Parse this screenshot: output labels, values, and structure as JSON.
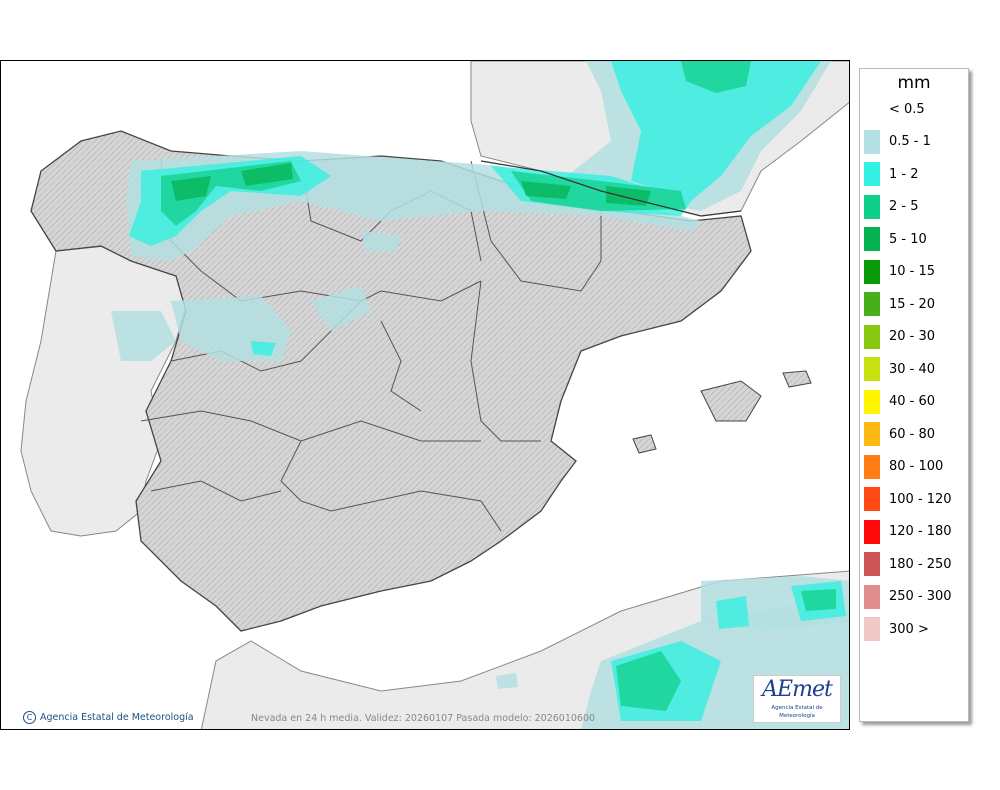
{
  "map": {
    "footer": "Nevada en 24 h media. Validez: 20260107 Pasada modelo: 2026010600",
    "credit": "Agencia Estatal de Meteorología",
    "logo_word": "AEmet",
    "logo_subtitle": "Agencia Estatal de Meteorología"
  },
  "legend": {
    "unit": "mm",
    "items": [
      {
        "label": "< 0.5",
        "color": "#ffffff"
      },
      {
        "label": "0.5 - 1",
        "color": "#b3dfe2"
      },
      {
        "label": "1 - 2",
        "color": "#34f0e0"
      },
      {
        "label": "2 - 5",
        "color": "#10cf8a"
      },
      {
        "label": "5 - 10",
        "color": "#05b050"
      },
      {
        "label": "10 - 15",
        "color": "#0a9a0a"
      },
      {
        "label": "15 - 20",
        "color": "#46b01a"
      },
      {
        "label": "20 - 30",
        "color": "#86c810"
      },
      {
        "label": "30 - 40",
        "color": "#c6e010"
      },
      {
        "label": "40 - 60",
        "color": "#fff500"
      },
      {
        "label": "60 - 80",
        "color": "#ffb914"
      },
      {
        "label": "80 - 100",
        "color": "#ff7d14"
      },
      {
        "label": "100 - 120",
        "color": "#ff4a14"
      },
      {
        "label": "120 - 180",
        "color": "#ff0a0a"
      },
      {
        "label": "180 - 250",
        "color": "#cc5555"
      },
      {
        "label": "250 - 300",
        "color": "#de8c8c"
      },
      {
        "label": "300 >",
        "color": "#f0c8c8"
      }
    ]
  }
}
